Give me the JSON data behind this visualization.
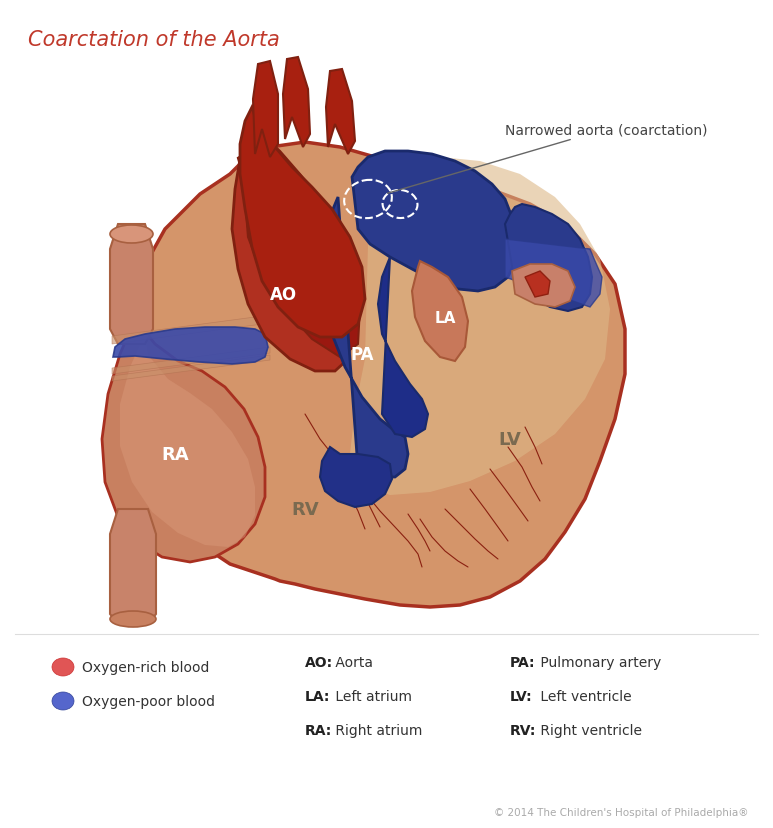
{
  "title": "Coarctation of the Aorta",
  "title_color": "#c0392b",
  "title_fontsize": 15,
  "annotation_label": "Narrowed aorta (coarctation)",
  "annotation_color": "#444444",
  "annotation_fontsize": 10,
  "copyright": "© 2014 The Children's Hospital of Philadelphia®",
  "copyright_color": "#aaaaaa",
  "copyright_fontsize": 7.5,
  "bg_color": "#ffffff",
  "heart_fill": "#d4956a",
  "heart_edge": "#a83020",
  "heart_lv_fill": "#ddb080",
  "heart_rv_fill": "#c8a080",
  "ao_fill": "#b03020",
  "ao_edge": "#802010",
  "pa_fill": "#2a3a8c",
  "pa_edge": "#1a2a6c",
  "ra_fill": "#c88060",
  "ra_edge": "#a06040",
  "la_fill": "#4a5aaa",
  "la_edge": "#2a3a8c",
  "blue_arch_fill": "#2a3a8c",
  "blue_arch_edge": "#1a2a6c",
  "vc_fill": "#c8836a",
  "vc_edge": "#a86040",
  "annot_line_color": "#666666",
  "white_dashed_color": "#ffffff",
  "label_white": "#ffffff",
  "label_dark": "#7a6a50",
  "legend_red": "#e05555",
  "legend_blue": "#5566cc"
}
